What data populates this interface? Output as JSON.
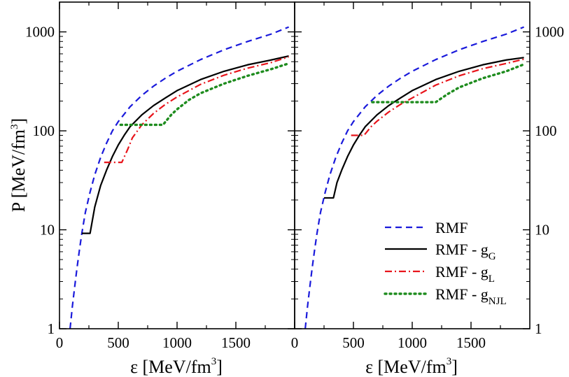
{
  "chart_data": {
    "type": "line",
    "x_scale": "linear",
    "y_scale": "log",
    "xlim": [
      0,
      2000
    ],
    "ylim": [
      1,
      2000
    ],
    "grid": false,
    "ylabel": {
      "main": "P [MeV/fm",
      "sup": "3",
      "close": "]"
    },
    "xlabel": {
      "main": "ε [MeV/fm",
      "sup": "3",
      "close": "]"
    },
    "xticks": [
      "0",
      "500",
      "1000",
      "1500"
    ],
    "yticks": [
      "1",
      "10",
      "100",
      "1000"
    ],
    "legend": {
      "placement": "bottom-right",
      "entries": [
        {
          "key": "rmf",
          "text": "RMF",
          "sub": ""
        },
        {
          "key": "g_g",
          "text": "RMF - g",
          "sub": "G"
        },
        {
          "key": "g_l",
          "text": "RMF - g",
          "sub": "L"
        },
        {
          "key": "g_njl",
          "text": "RMF - g",
          "sub": "NJL"
        }
      ]
    },
    "styles": {
      "rmf": {
        "color": "#1a1adb",
        "dash": "9 6",
        "width": 2.2
      },
      "g_g": {
        "color": "#000000",
        "dash": "",
        "width": 2.2
      },
      "g_l": {
        "color": "#e8141b",
        "dash": "10 4 2 4",
        "width": 2.2
      },
      "g_njl": {
        "color": "#1e8c1e",
        "dash": "2 5",
        "width": 3.4
      }
    },
    "panels": [
      {
        "key": "left",
        "series": [
          {
            "key": "rmf",
            "points": [
              [
                90,
                1
              ],
              [
                110,
                1.7
              ],
              [
                130,
                2.7
              ],
              [
                150,
                4.2
              ],
              [
                170,
                6.3
              ],
              [
                190,
                9.2
              ],
              [
                220,
                15
              ],
              [
                260,
                24
              ],
              [
                300,
                36
              ],
              [
                350,
                54
              ],
              [
                400,
                75
              ],
              [
                450,
                100
              ],
              [
                500,
                124
              ],
              [
                600,
                175
              ],
              [
                700,
                228
              ],
              [
                800,
                283
              ],
              [
                900,
                340
              ],
              [
                1000,
                400
              ],
              [
                1200,
                525
              ],
              [
                1400,
                660
              ],
              [
                1600,
                800
              ],
              [
                1800,
                950
              ],
              [
                1950,
                1120
              ]
            ]
          },
          {
            "key": "g_g",
            "points": [
              [
                190,
                9.2
              ],
              [
                260,
                9.2
              ],
              [
                300,
                17
              ],
              [
                350,
                28
              ],
              [
                400,
                40
              ],
              [
                450,
                55
              ],
              [
                500,
                72
              ],
              [
                550,
                90
              ],
              [
                600,
                110
              ],
              [
                700,
                145
              ],
              [
                800,
                180
              ],
              [
                900,
                215
              ],
              [
                1000,
                255
              ],
              [
                1200,
                330
              ],
              [
                1400,
                400
              ],
              [
                1600,
                465
              ],
              [
                1800,
                520
              ],
              [
                1950,
                570
              ]
            ]
          },
          {
            "key": "g_l",
            "points": [
              [
                380,
                48
              ],
              [
                530,
                48
              ],
              [
                580,
                65
              ],
              [
                620,
                85
              ],
              [
                700,
                115
              ],
              [
                800,
                150
              ],
              [
                900,
                185
              ],
              [
                1000,
                220
              ],
              [
                1200,
                295
              ],
              [
                1400,
                365
              ],
              [
                1600,
                430
              ],
              [
                1800,
                490
              ],
              [
                1950,
                560
              ]
            ]
          },
          {
            "key": "g_njl",
            "points": [
              [
                520,
                115
              ],
              [
                880,
                115
              ],
              [
                950,
                145
              ],
              [
                1000,
                165
              ],
              [
                1100,
                205
              ],
              [
                1200,
                240
              ],
              [
                1400,
                300
              ],
              [
                1600,
                360
              ],
              [
                1800,
                420
              ],
              [
                1950,
                480
              ]
            ]
          }
        ]
      },
      {
        "key": "right",
        "series": [
          {
            "key": "rmf",
            "points": [
              [
                90,
                1
              ],
              [
                110,
                1.7
              ],
              [
                130,
                2.7
              ],
              [
                150,
                4.2
              ],
              [
                170,
                6.3
              ],
              [
                190,
                9.2
              ],
              [
                220,
                15
              ],
              [
                260,
                24
              ],
              [
                300,
                36
              ],
              [
                350,
                54
              ],
              [
                400,
                75
              ],
              [
                450,
                100
              ],
              [
                500,
                124
              ],
              [
                600,
                175
              ],
              [
                700,
                228
              ],
              [
                800,
                283
              ],
              [
                900,
                340
              ],
              [
                1000,
                400
              ],
              [
                1200,
                525
              ],
              [
                1400,
                660
              ],
              [
                1600,
                800
              ],
              [
                1800,
                950
              ],
              [
                1950,
                1120
              ]
            ]
          },
          {
            "key": "g_g",
            "points": [
              [
                250,
                21
              ],
              [
                330,
                21
              ],
              [
                360,
                30
              ],
              [
                400,
                40
              ],
              [
                450,
                55
              ],
              [
                500,
                72
              ],
              [
                550,
                90
              ],
              [
                600,
                110
              ],
              [
                700,
                145
              ],
              [
                800,
                180
              ],
              [
                900,
                215
              ],
              [
                1000,
                255
              ],
              [
                1200,
                330
              ],
              [
                1400,
                400
              ],
              [
                1600,
                465
              ],
              [
                1800,
                520
              ],
              [
                1950,
                550
              ]
            ]
          },
          {
            "key": "g_l",
            "points": [
              [
                480,
                90
              ],
              [
                590,
                90
              ],
              [
                650,
                110
              ],
              [
                700,
                125
              ],
              [
                800,
                155
              ],
              [
                900,
                185
              ],
              [
                1000,
                215
              ],
              [
                1200,
                290
              ],
              [
                1400,
                360
              ],
              [
                1600,
                425
              ],
              [
                1800,
                480
              ],
              [
                1950,
                530
              ]
            ]
          },
          {
            "key": "g_njl",
            "points": [
              [
                660,
                195
              ],
              [
                1200,
                195
              ],
              [
                1300,
                235
              ],
              [
                1400,
                275
              ],
              [
                1600,
                340
              ],
              [
                1800,
                400
              ],
              [
                1950,
                470
              ]
            ]
          }
        ]
      }
    ]
  }
}
